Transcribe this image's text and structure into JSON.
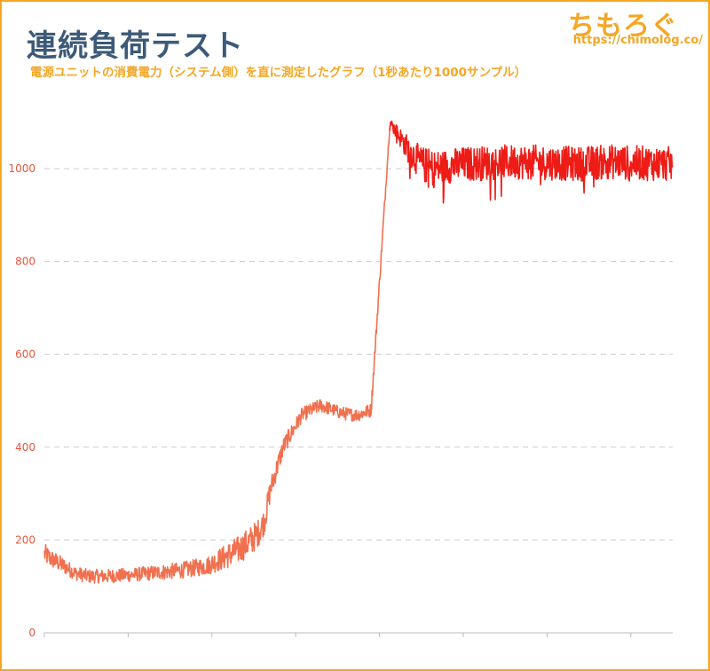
{
  "header": {
    "title": "連続負荷テスト",
    "subtitle": "電源ユニットの消費電力（システム側）を直に測定したグラフ（1秒あたり1000サンプル）",
    "brand": "ちもろぐ",
    "brand_url": "https://chimolog.co/"
  },
  "chart_data": {
    "type": "line",
    "title": "連続負荷テスト",
    "subtitle": "電源ユニットの消費電力（システム側）を直に測定したグラフ（1秒あたり1000サンプル）",
    "xlabel": "",
    "ylabel": "",
    "ylim": [
      0,
      1130
    ],
    "yticks": [
      0,
      200,
      400,
      600,
      800,
      1000
    ],
    "x_tick_count": 8,
    "grid": "horizontal dashed",
    "colors": {
      "low_load": "#f0704f",
      "high_load": "#ee1c16",
      "tick_text": "#e8563c",
      "gridline": "#cccccc",
      "frame": "#f5a623",
      "title": "#3c5a78"
    },
    "series": [
      {
        "x": [
          0,
          1,
          3,
          5,
          7,
          10,
          14,
          18,
          22,
          26,
          29,
          31,
          33,
          34,
          35,
          36,
          38,
          41,
          44,
          46,
          47,
          48,
          49,
          50,
          52,
          55,
          58,
          60,
          61,
          62,
          64,
          67,
          70,
          75,
          80,
          85,
          90,
          95,
          100
        ],
        "values": [
          170,
          160,
          145,
          128,
          122,
          122,
          125,
          130,
          135,
          145,
          165,
          180,
          200,
          215,
          240,
          310,
          400,
          470,
          490,
          480,
          475,
          472,
          470,
          470,
          480,
          1100,
          1040,
          1010,
          1005,
          1000,
          1005,
          1010,
          1012,
          1015,
          1013,
          1010,
          1015,
          1012,
          1010
        ],
        "noise": [
          45,
          40,
          35,
          30,
          30,
          30,
          30,
          32,
          35,
          40,
          55,
          60,
          65,
          60,
          55,
          50,
          40,
          30,
          30,
          28,
          28,
          28,
          28,
          28,
          30,
          20,
          60,
          75,
          80,
          80,
          75,
          75,
          75,
          75,
          75,
          75,
          75,
          75,
          75
        ]
      }
    ]
  }
}
